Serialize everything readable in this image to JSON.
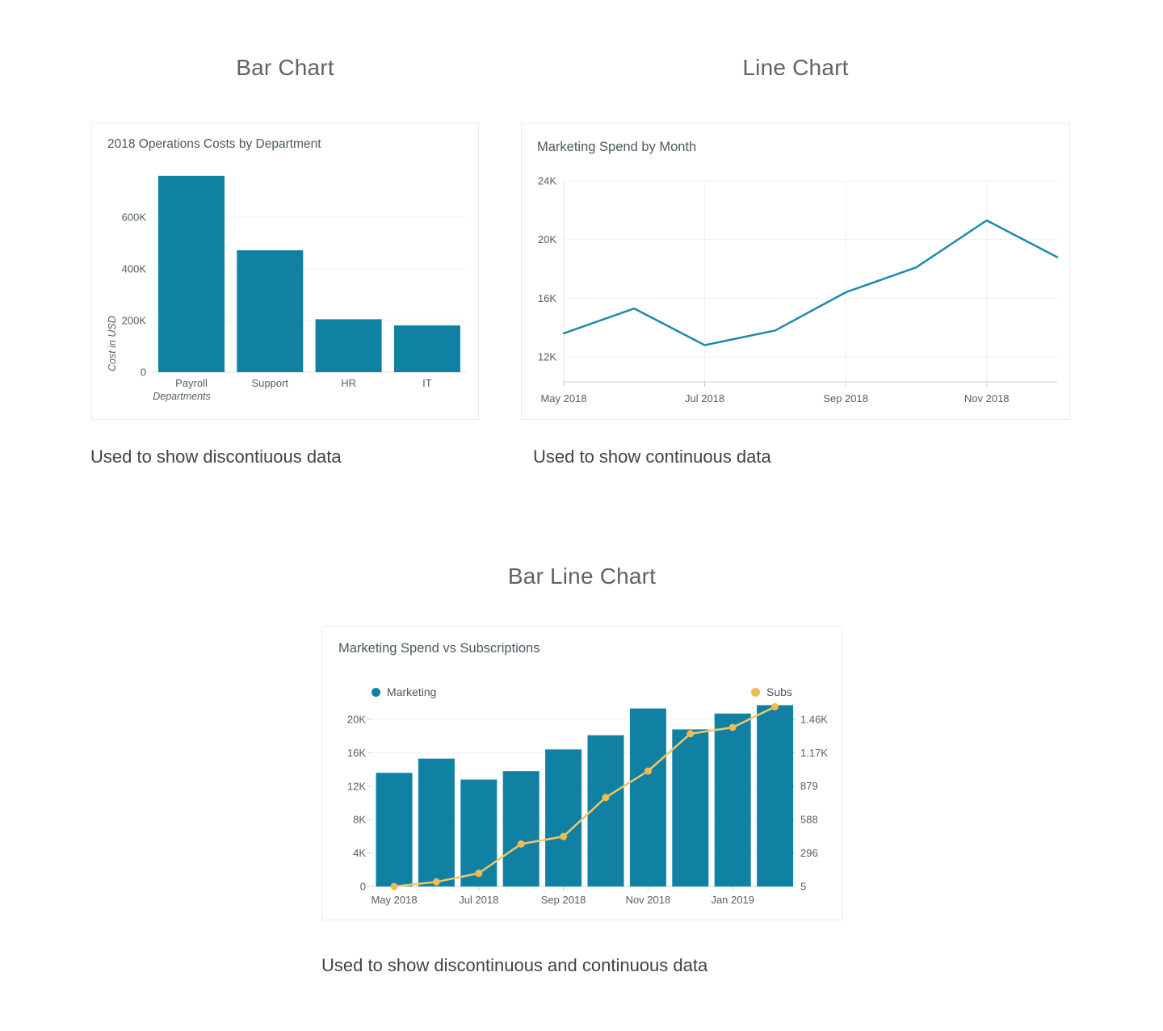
{
  "page": {
    "headings": {
      "bar": "Bar Chart",
      "line": "Line Chart",
      "barline": "Bar Line Chart"
    },
    "captions": {
      "bar": "Used to show discontiuous data",
      "line": "Used to show continuous data",
      "barline": "Used to show discontinuous and continuous data"
    }
  },
  "colors": {
    "teal": "#1181a3",
    "line_teal": "#1b8bad",
    "subs_line": "#f3c566",
    "subs_marker": "#f0bc52",
    "gridline": "#f0f0f0",
    "axis_line": "#d5d5d5",
    "tick_mark": "#c9c9c9"
  },
  "chart_data": [
    {
      "id": "bar-chart",
      "type": "bar",
      "title": "2018 Operations Costs by Department",
      "categories": [
        "Payroll",
        "Support",
        "HR",
        "IT"
      ],
      "values": [
        760000,
        472000,
        205000,
        181000
      ],
      "xlabel": "Departments",
      "ylabel": "Cost in USD",
      "yticks": [
        0,
        200000,
        400000,
        600000
      ],
      "ytick_labels": [
        "0",
        "200K",
        "400K",
        "600K"
      ],
      "ylim": [
        0,
        780000
      ],
      "grid": true,
      "legend_position": "none"
    },
    {
      "id": "line-chart",
      "type": "line",
      "title": "Marketing Spend by Month",
      "x": [
        "May 2018",
        "Jun 2018",
        "Jul 2018",
        "Aug 2018",
        "Sep 2018",
        "Oct 2018",
        "Nov 2018",
        "Dec 2018"
      ],
      "values": [
        13600,
        15300,
        12800,
        13800,
        16400,
        18100,
        21300,
        18800
      ],
      "xtick_labels": [
        "May 2018",
        "Jul 2018",
        "Sep 2018",
        "Nov 2018"
      ],
      "yticks": [
        12000,
        16000,
        20000,
        24000
      ],
      "ytick_labels": [
        "12K",
        "16K",
        "20K",
        "24K"
      ],
      "ylim": [
        10300,
        24000
      ],
      "grid": true,
      "legend_position": "none"
    },
    {
      "id": "bar-line-chart",
      "type": "bar+line",
      "title": "Marketing Spend vs Subscriptions",
      "categories": [
        "May 2018",
        "Jun 2018",
        "Jul 2018",
        "Aug 2018",
        "Sep 2018",
        "Oct 2018",
        "Nov 2018",
        "Dec 2018",
        "Jan 2019",
        "Feb 2019"
      ],
      "xtick_labels": [
        "May 2018",
        "Jul 2018",
        "Sep 2018",
        "Nov 2018",
        "Jan 2019"
      ],
      "series": [
        {
          "name": "Marketing",
          "type": "bar",
          "axis": "left",
          "values": [
            13600,
            15300,
            12800,
            13800,
            16400,
            18100,
            21300,
            18800,
            20700,
            21700
          ]
        },
        {
          "name": "Subs",
          "type": "line",
          "axis": "right",
          "values": [
            5,
            45,
            120,
            375,
            440,
            780,
            1010,
            1335,
            1390,
            1570
          ]
        }
      ],
      "left_yticks": [
        0,
        4000,
        8000,
        12000,
        16000,
        20000
      ],
      "left_ytick_labels": [
        "0",
        "4K",
        "8K",
        "12K",
        "16K",
        "20K"
      ],
      "right_yticks": [
        5,
        296,
        588,
        879,
        1170,
        1460
      ],
      "right_ytick_labels": [
        "5",
        "296",
        "588",
        "879",
        "1.17K",
        "1.46K"
      ],
      "left_ylim": [
        0,
        22000
      ],
      "right_ylim": [
        5,
        1600
      ],
      "grid": true,
      "legend_position": "top"
    }
  ]
}
